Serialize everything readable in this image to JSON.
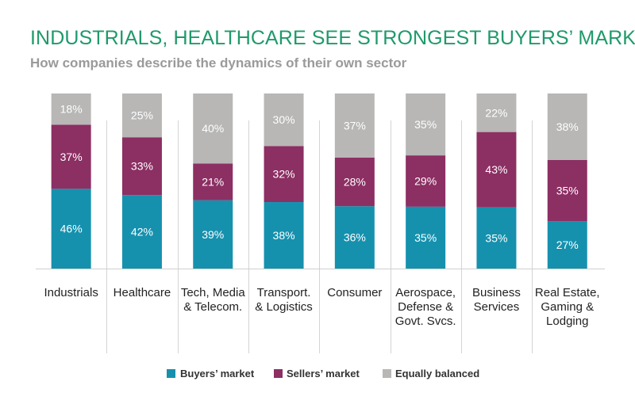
{
  "colors": {
    "title": "#1f9a6b",
    "subtitle": "#9a9a9a",
    "buyers": "#1591ae",
    "sellers": "#8c2f63",
    "balanced": "#b8b7b6",
    "divider": "#d4d4d4"
  },
  "chart_data": {
    "type": "bar",
    "stacked": true,
    "title": "INDUSTRIALS, HEALTHCARE SEE STRONGEST BUYERS’ MARKET",
    "subtitle": "How companies describe the dynamics of their own sector",
    "categories": [
      "Industrials",
      "Healthcare",
      "Tech, Media\n& Telecom.",
      "Transport.\n& Logistics",
      "Consumer",
      "Aerospace,\nDefense &\nGovt. Svcs.",
      "Business\nServices",
      "Real Estate,\nGaming &\nLodging"
    ],
    "series": [
      {
        "name": "Buyers’ market",
        "color": "#1591ae",
        "values": [
          46,
          42,
          39,
          38,
          36,
          35,
          35,
          27
        ]
      },
      {
        "name": "Sellers’ market",
        "color": "#8c2f63",
        "values": [
          37,
          33,
          21,
          32,
          28,
          29,
          43,
          35
        ]
      },
      {
        "name": "Equally balanced",
        "color": "#b8b7b6",
        "values": [
          18,
          25,
          40,
          30,
          37,
          35,
          22,
          38
        ]
      }
    ],
    "value_suffix": "%",
    "legend_position": "bottom",
    "grid": false
  }
}
